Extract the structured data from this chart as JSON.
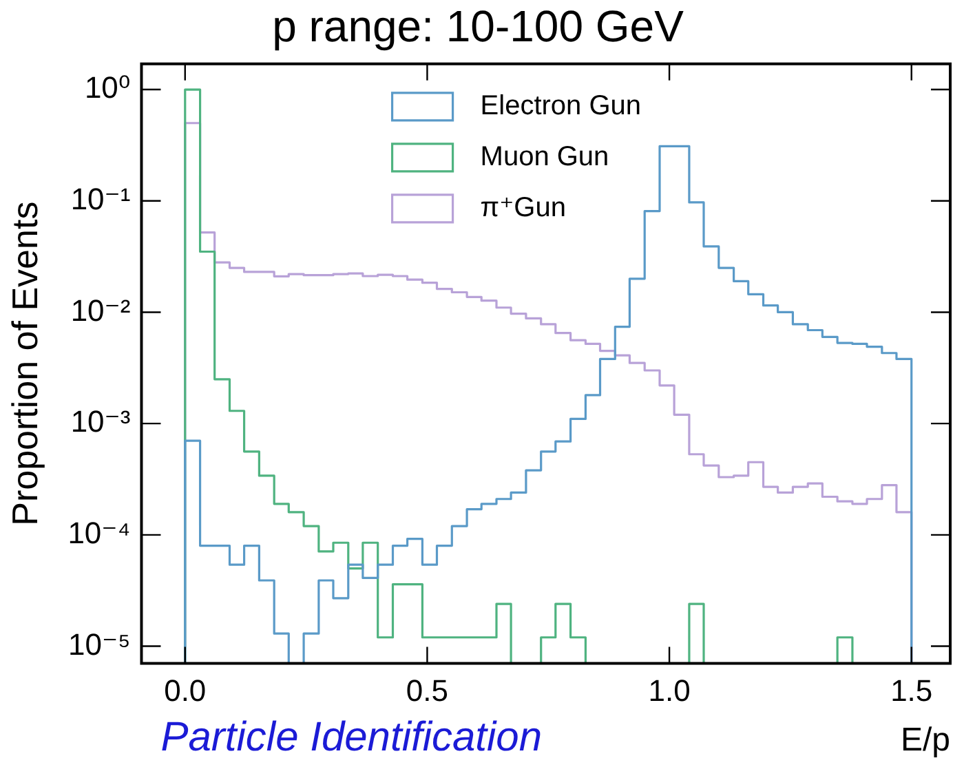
{
  "chart_data": {
    "type": "histogram",
    "title": "p range: 10-100 GeV",
    "xlabel": "E/p",
    "ylabel": "Proportion of Events",
    "annotations": [
      "Particle Identification"
    ],
    "bins": [
      0,
      0.031,
      0.061,
      0.092,
      0.122,
      0.153,
      0.184,
      0.214,
      0.245,
      0.276,
      0.306,
      0.337,
      0.367,
      0.398,
      0.429,
      0.459,
      0.49,
      0.52,
      0.551,
      0.582,
      0.612,
      0.643,
      0.673,
      0.704,
      0.735,
      0.765,
      0.796,
      0.827,
      0.857,
      0.888,
      0.918,
      0.949,
      0.98,
      1.01,
      1.041,
      1.071,
      1.102,
      1.133,
      1.163,
      1.194,
      1.224,
      1.255,
      1.286,
      1.316,
      1.347,
      1.378,
      1.408,
      1.439,
      1.469,
      1.5
    ],
    "series": [
      {
        "name": "Electron Gun",
        "color": "#5a9ac8",
        "values": [
          0.0007,
          8e-05,
          8e-05,
          5.4e-05,
          8e-05,
          3.9e-05,
          1.3e-05,
          null,
          1.3e-05,
          3.9e-05,
          2.7e-05,
          5.4e-05,
          4.1e-05,
          5.4e-05,
          8e-05,
          9.2e-05,
          5.4e-05,
          8e-05,
          0.00012,
          0.00017,
          0.00019,
          0.00021,
          0.00024,
          0.00038,
          0.00056,
          0.00069,
          0.0011,
          0.0018,
          0.0038,
          0.0074,
          0.02,
          0.081,
          0.31,
          0.31,
          0.097,
          0.039,
          0.025,
          0.019,
          0.0145,
          0.0115,
          0.01,
          0.0078,
          0.0069,
          0.006,
          0.0053,
          0.0052,
          0.0049,
          0.0043,
          0.0038
        ]
      },
      {
        "name": "Muon Gun",
        "color": "#4fb380",
        "values": [
          1.0,
          0.035,
          0.0025,
          0.0013,
          0.00056,
          0.00034,
          0.00019,
          0.00016,
          0.00012,
          7.1e-05,
          8.5e-05,
          5e-05,
          8.5e-05,
          1.2e-05,
          3.6e-05,
          3.6e-05,
          1.2e-05,
          1.2e-05,
          1.2e-05,
          1.2e-05,
          1.2e-05,
          2.4e-05,
          null,
          null,
          1.2e-05,
          2.4e-05,
          1.2e-05,
          null,
          null,
          null,
          null,
          null,
          null,
          null,
          2.4e-05,
          null,
          null,
          null,
          null,
          null,
          null,
          null,
          null,
          null,
          1.2e-05,
          null,
          null,
          null,
          null
        ]
      },
      {
        "name": "π⁺Gun",
        "color": "#b8a2d8",
        "values": [
          0.5,
          0.052,
          0.028,
          0.025,
          0.023,
          0.023,
          0.021,
          0.022,
          0.0215,
          0.0215,
          0.022,
          0.0223,
          0.0211,
          0.0217,
          0.0211,
          0.0196,
          0.0184,
          0.0162,
          0.0151,
          0.0137,
          0.0127,
          0.011,
          0.0097,
          0.0088,
          0.0078,
          0.0065,
          0.0056,
          0.0052,
          0.0045,
          0.0041,
          0.0035,
          0.003,
          0.0022,
          0.0012,
          0.00053,
          0.00042,
          0.00033,
          0.00034,
          0.00045,
          0.00027,
          0.00024,
          0.00027,
          0.00029,
          0.00022,
          0.0002,
          0.00019,
          0.00021,
          0.00028,
          0.00016
        ]
      }
    ],
    "xlim": [
      -0.09,
      1.58
    ],
    "xticks": [
      {
        "value": 0,
        "label": "0.0"
      },
      {
        "value": 0.5,
        "label": "0.5"
      },
      {
        "value": 1,
        "label": "1.0"
      },
      {
        "value": 1.5,
        "label": "1.5"
      }
    ],
    "ylim": [
      7e-06,
      1.7
    ],
    "yticks": [
      {
        "value": 1,
        "label": "10⁰"
      },
      {
        "value": 0.1,
        "label": "10⁻¹"
      },
      {
        "value": 0.01,
        "label": "10⁻²"
      },
      {
        "value": 0.001,
        "label": "10⁻³"
      },
      {
        "value": 0.0001,
        "label": "10⁻⁴"
      },
      {
        "value": 1e-05,
        "label": "10⁻⁵"
      }
    ],
    "log": true,
    "legend": "top"
  }
}
